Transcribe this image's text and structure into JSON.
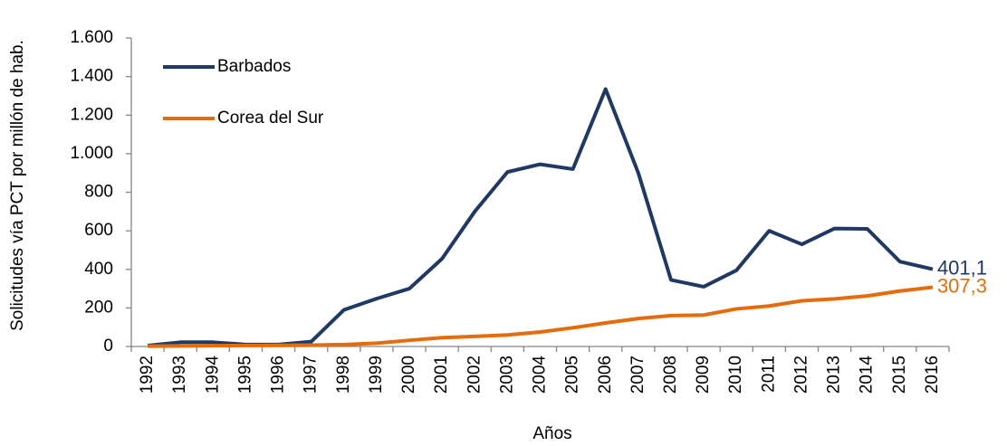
{
  "chart_data": {
    "type": "line",
    "x_label": "Años",
    "y_label": "Solicitudes vía PCT por millón de hab.",
    "categories": [
      "1992",
      "1993",
      "1994",
      "1995",
      "1996",
      "1997",
      "1998",
      "1999",
      "2000",
      "2001",
      "2002",
      "2003",
      "2004",
      "2005",
      "2006",
      "2007",
      "2008",
      "2009",
      "2010",
      "2011",
      "2012",
      "2013",
      "2014",
      "2015",
      "2016"
    ],
    "series": [
      {
        "name": "Barbados",
        "color": "#1f3864",
        "values": [
          5,
          22,
          22,
          10,
          10,
          25,
          190,
          248,
          300,
          455,
          700,
          905,
          945,
          920,
          1335,
          900,
          345,
          310,
          395,
          600,
          530,
          612,
          610,
          440,
          401.1
        ],
        "value_labels": [
          null,
          null,
          null,
          null,
          null,
          null,
          null,
          null,
          null,
          null,
          null,
          null,
          null,
          null,
          null,
          null,
          null,
          null,
          null,
          null,
          null,
          null,
          null,
          null,
          "401,1"
        ]
      },
      {
        "name": "Corea del Sur",
        "color": "#e46c0a",
        "values": [
          2,
          3,
          4,
          5,
          6,
          7,
          10,
          17,
          32,
          46,
          52,
          60,
          75,
          97,
          122,
          145,
          160,
          163,
          195,
          210,
          237,
          247,
          262,
          288,
          307.3
        ],
        "value_labels": [
          null,
          null,
          null,
          null,
          null,
          null,
          null,
          null,
          null,
          null,
          null,
          null,
          null,
          null,
          null,
          null,
          null,
          null,
          null,
          null,
          null,
          null,
          null,
          null,
          "307,3"
        ]
      }
    ],
    "ylim": [
      0,
      1600
    ],
    "yticks": [
      0,
      200,
      400,
      600,
      800,
      {
        "value": 1000,
        "label": "1.000"
      },
      {
        "value": 1200,
        "label": "1.200"
      },
      {
        "value": 1400,
        "label": "1.400"
      },
      {
        "value": 1600,
        "label": "1.600"
      }
    ],
    "grid": false,
    "legend": "upper left"
  }
}
